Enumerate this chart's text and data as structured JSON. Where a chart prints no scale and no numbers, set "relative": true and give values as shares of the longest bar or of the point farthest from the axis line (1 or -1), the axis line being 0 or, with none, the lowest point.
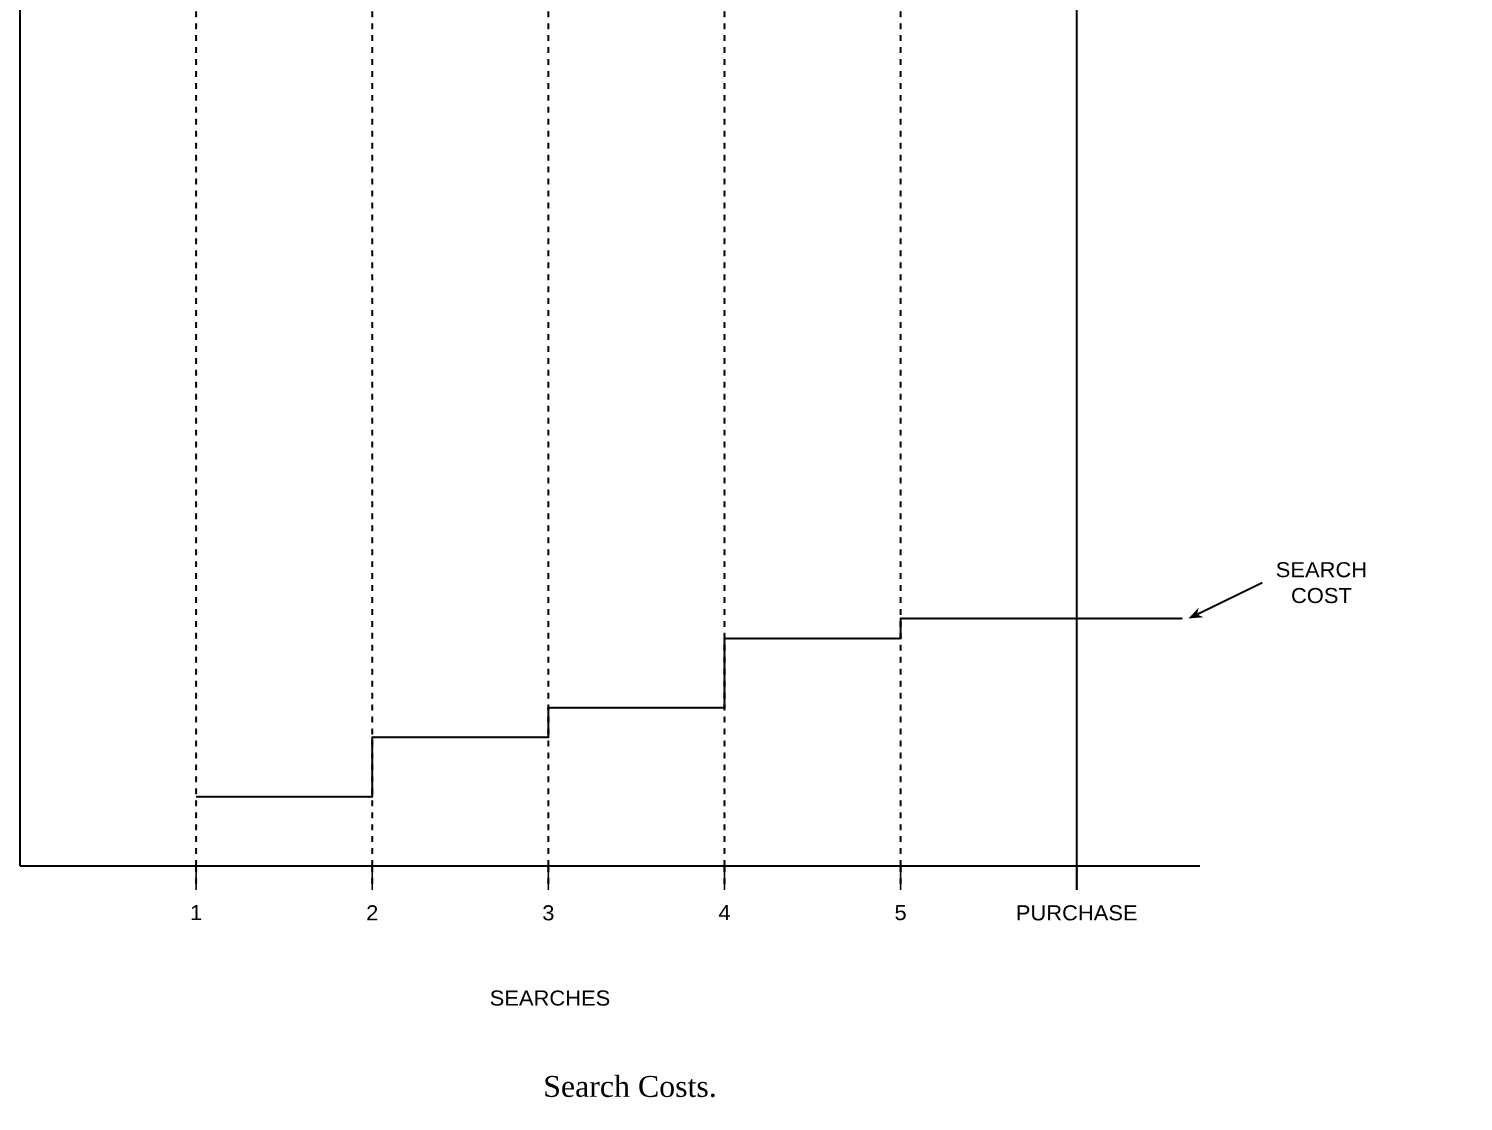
{
  "chart_data": {
    "type": "step",
    "title": "Search Costs.",
    "xlabel": "SEARCHES",
    "x": [
      1,
      2,
      3,
      4,
      5,
      6.6
    ],
    "values": [
      0.28,
      0.52,
      0.64,
      0.92,
      1.0,
      1.0
    ],
    "color": "#000000",
    "relative": true,
    "xlim": [
      0,
      6.7
    ],
    "xticks": [
      1,
      2,
      3,
      4,
      5,
      {
        "value": 6,
        "label": "PURCHASE"
      }
    ],
    "tick_labels": "x",
    "grid": false,
    "marker": "none",
    "line_style": "solid",
    "ref_lines": [
      {
        "axis": "x",
        "value": 1,
        "line_style": "dashed"
      },
      {
        "axis": "x",
        "value": 2,
        "line_style": "dashed"
      },
      {
        "axis": "x",
        "value": 3,
        "line_style": "dashed"
      },
      {
        "axis": "x",
        "value": 4,
        "line_style": "dashed"
      },
      {
        "axis": "x",
        "value": 5,
        "line_style": "dashed"
      },
      {
        "axis": "x",
        "value": 6,
        "line_style": "solid"
      }
    ],
    "annotations": [
      {
        "text": "SEARCH COST",
        "x": 6.6,
        "y": 1.0
      }
    ]
  }
}
